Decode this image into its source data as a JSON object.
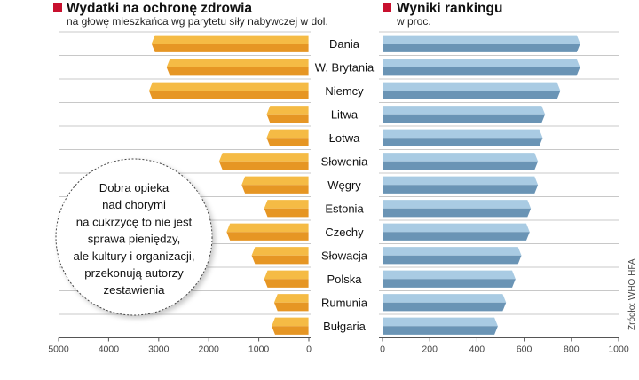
{
  "chart_data": [
    {
      "type": "bar",
      "orientation": "horizontal",
      "direction": "right-to-left",
      "title": "Wydatki na ochronę zdrowia",
      "subtitle": "na głowę mieszkańca wg parytetu siły nabywczej w dol.",
      "categories": [
        "Dania",
        "W. Brytania",
        "Niemcy",
        "Litwa",
        "Łotwa",
        "Słowenia",
        "Węgry",
        "Estonia",
        "Czechy",
        "Słowacja",
        "Polska",
        "Rumunia",
        "Bułgaria"
      ],
      "values": [
        3150,
        2850,
        3200,
        850,
        850,
        1800,
        1350,
        900,
        1650,
        1150,
        900,
        700,
        750
      ],
      "xlim": [
        0,
        5000
      ],
      "xticks": [
        5000,
        4000,
        3000,
        2000,
        1000,
        0
      ],
      "color_top": "#f5bb45",
      "color_bottom": "#e69624",
      "legend_marker_color": "#c8102e"
    },
    {
      "type": "bar",
      "orientation": "horizontal",
      "title": "Wyniki rankingu",
      "subtitle": "w proc.",
      "categories": [
        "Dania",
        "W. Brytania",
        "Niemcy",
        "Litwa",
        "Łotwa",
        "Słowenia",
        "Węgry",
        "Estonia",
        "Czechy",
        "Słowacja",
        "Polska",
        "Rumunia",
        "Bułgaria"
      ],
      "values": [
        839,
        838,
        755,
        690,
        680,
        660,
        660,
        630,
        625,
        590,
        565,
        525,
        490
      ],
      "xlim": [
        0,
        1000
      ],
      "xticks": [
        0,
        200,
        400,
        600,
        800,
        1000
      ],
      "color_top": "#a9cbe3",
      "color_bottom": "#6a94b5",
      "legend_marker_color": "#c8102e"
    }
  ],
  "annotation": {
    "lines": [
      "Dobra opieka",
      "nad chorymi",
      "na cukrzycę to nie jest",
      "sprawa pieniędzy,",
      "ale kultury i organizacji,",
      "przekonują autorzy",
      "zestawienia"
    ]
  },
  "source": "Źródło: WHO HFA"
}
